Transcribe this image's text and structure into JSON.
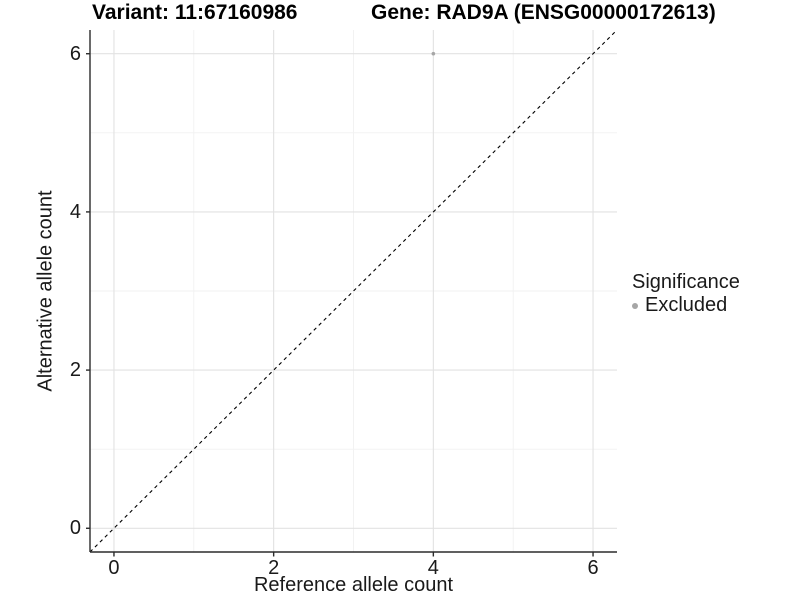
{
  "header": {
    "title_variant": "Variant: 11:67160986",
    "title_gene": "Gene: RAD9A (ENSG00000172613)"
  },
  "chart_data": {
    "type": "scatter",
    "titles": [
      "Variant: 11:67160986",
      "Gene: RAD9A (ENSG00000172613)"
    ],
    "xlabel": "Reference allele count",
    "ylabel": "Alternative allele count",
    "xlim": [
      -0.3,
      6.3
    ],
    "ylim": [
      -0.3,
      6.3
    ],
    "x_ticks": [
      0,
      2,
      4,
      6
    ],
    "y_ticks": [
      0,
      2,
      4,
      6
    ],
    "x_minor_ticks": [
      1,
      3,
      5
    ],
    "y_minor_ticks": [
      1,
      3,
      5
    ],
    "grid": "major+minor",
    "legend_title": "Significance",
    "legend_position": "right",
    "series": [
      {
        "name": "Excluded",
        "color": "#a6a6a6",
        "marker": "dot",
        "points": [
          {
            "x": 4,
            "y": 6
          }
        ]
      }
    ],
    "reference_line": {
      "type": "identity y=x",
      "style": "dashed",
      "color": "#000000",
      "from": [
        -0.3,
        -0.3
      ],
      "to": [
        6.3,
        6.3
      ]
    }
  },
  "colors": {
    "background": "#ffffff",
    "grid_major": "#e2e2e2",
    "grid_minor": "#f1f1f1",
    "axis_line": "#2b2b2b",
    "tick_text": "#1a1a1a",
    "point": "#a6a6a6"
  }
}
